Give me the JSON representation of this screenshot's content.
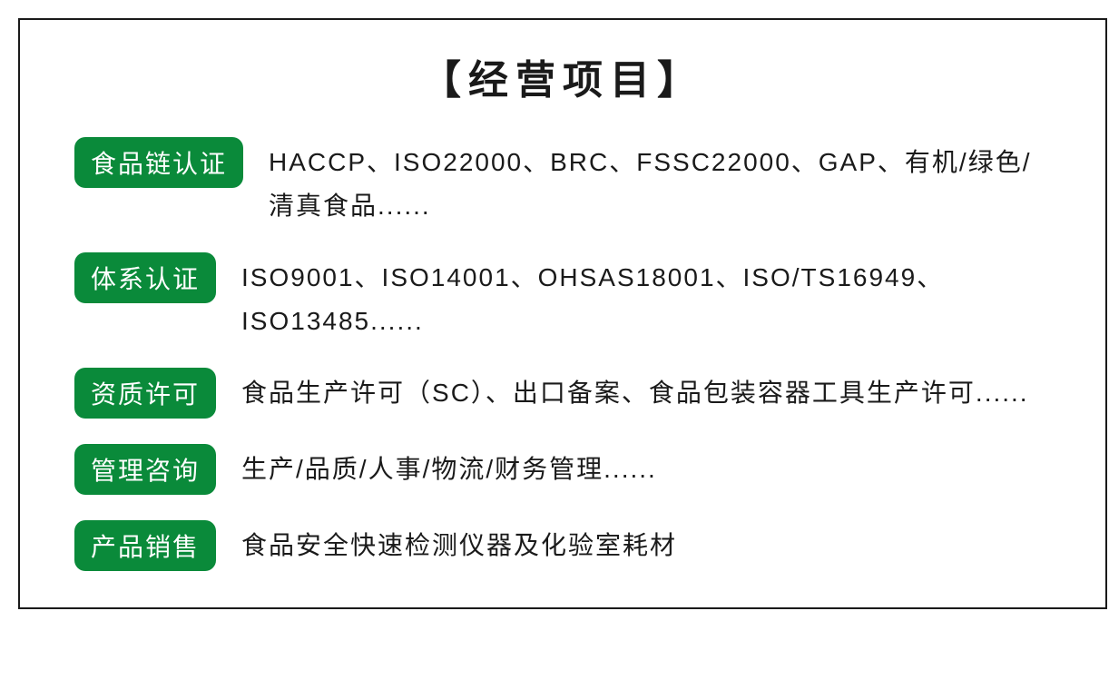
{
  "title": "【经营项目】",
  "badge_bg_color": "#0a8a3a",
  "badge_text_color": "#ffffff",
  "border_color": "#1a1a1a",
  "text_color": "#1a1a1a",
  "title_fontsize": 44,
  "body_fontsize": 28,
  "items": [
    {
      "label": "食品链认证",
      "desc": "HACCP、ISO22000、BRC、FSSC22000、GAP、有机/绿色/清真食品......"
    },
    {
      "label": "体系认证",
      "desc": "ISO9001、ISO14001、OHSAS18001、ISO/TS16949、ISO13485......"
    },
    {
      "label": "资质许可",
      "desc": "食品生产许可（SC）、出口备案、食品包装容器工具生产许可......"
    },
    {
      "label": "管理咨询",
      "desc": "生产/品质/人事/物流/财务管理......"
    },
    {
      "label": "产品销售",
      "desc": "食品安全快速检测仪器及化验室耗材"
    }
  ]
}
